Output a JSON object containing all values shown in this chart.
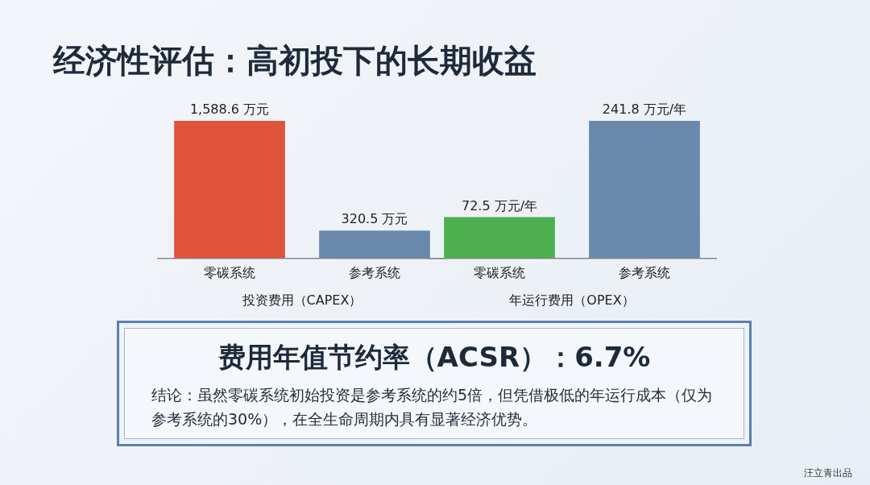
{
  "chart_data": [
    {
      "type": "bar",
      "title": "经济性评估：高初投下的长期收益",
      "categories": [
        "零碳系统",
        "参考系统"
      ],
      "xlabel": "投资费用（CAPEX）",
      "values": [
        1588.6,
        320.5
      ],
      "colors": [
        "#e0533a",
        "#6a88ab"
      ],
      "value_labels": [
        "1,588.6 万元",
        "320.5 万元"
      ],
      "grid": false,
      "legend": false,
      "tick_labels": "x"
    },
    {
      "type": "bar",
      "categories": [
        "零碳系统",
        "参考系统"
      ],
      "xlabel": "年运行费用（OPEX）",
      "values": [
        72.5,
        241.8
      ],
      "colors": [
        "#4caf50",
        "#6a88ab"
      ],
      "value_labels": [
        "72.5 万元/年",
        "241.8 万元/年"
      ],
      "grid": false,
      "legend": false,
      "tick_labels": "x",
      "annotations": [
        "费用年值节约率（ACSR）：6.7%",
        "结论：虽然零碳系统初始投资是参考系统的约5倍，但凭借极低的年运行成本（仅为参考系统的30%），在全生命周期内具有显著经济优势。",
        "汪立青出品"
      ]
    }
  ]
}
